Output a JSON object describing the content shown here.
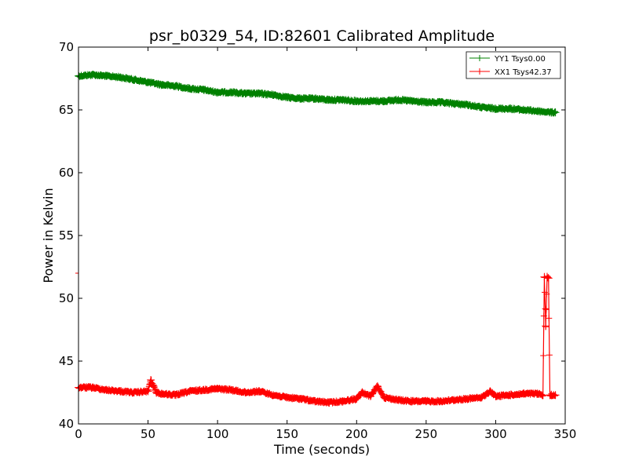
{
  "chart_data": {
    "type": "line",
    "title": "psr_b0329_54, ID:82601 Calibrated Amplitude",
    "xlabel": "Time (seconds)",
    "ylabel": "Power in Kelvin",
    "xlim": [
      0,
      350
    ],
    "ylim": [
      40,
      70
    ],
    "xticks": [
      0,
      50,
      100,
      150,
      200,
      250,
      300,
      350
    ],
    "yticks": [
      40,
      45,
      50,
      55,
      60,
      65,
      70
    ],
    "grid": false,
    "legend_position": "top-right",
    "marker": "+",
    "series": [
      {
        "name": "YY1 Tsys0.00",
        "color": "#008000",
        "x": [
          0,
          10,
          20,
          30,
          40,
          50,
          60,
          70,
          80,
          90,
          100,
          110,
          120,
          130,
          140,
          150,
          160,
          170,
          180,
          190,
          200,
          210,
          220,
          230,
          240,
          250,
          260,
          270,
          280,
          290,
          300,
          310,
          320,
          330,
          340,
          343
        ],
        "y": [
          67.7,
          67.8,
          67.7,
          67.6,
          67.4,
          67.2,
          67.0,
          66.9,
          66.7,
          66.6,
          66.4,
          66.4,
          66.3,
          66.3,
          66.2,
          66.0,
          65.9,
          65.9,
          65.8,
          65.8,
          65.7,
          65.7,
          65.7,
          65.8,
          65.7,
          65.6,
          65.6,
          65.5,
          65.4,
          65.2,
          65.1,
          65.1,
          65.0,
          64.9,
          64.8,
          64.8
        ]
      },
      {
        "name": "XX1 Tsys42.37",
        "color": "#ff0000",
        "x": [
          0,
          10,
          20,
          30,
          40,
          50,
          52,
          54,
          56,
          60,
          70,
          80,
          90,
          100,
          110,
          120,
          130,
          140,
          150,
          160,
          170,
          180,
          190,
          200,
          204,
          210,
          215,
          220,
          230,
          240,
          250,
          260,
          270,
          280,
          290,
          296,
          300,
          310,
          320,
          330,
          334,
          335,
          336,
          337,
          338,
          339,
          340,
          343
        ],
        "y": [
          42.9,
          42.9,
          42.7,
          42.6,
          42.5,
          42.6,
          43.5,
          43.0,
          42.5,
          42.4,
          42.3,
          42.6,
          42.7,
          42.8,
          42.7,
          42.5,
          42.6,
          42.3,
          42.1,
          42.0,
          41.8,
          41.7,
          41.8,
          42.0,
          42.5,
          42.2,
          43.0,
          42.1,
          41.9,
          41.8,
          41.8,
          41.8,
          41.9,
          42.0,
          42.1,
          42.6,
          42.2,
          42.3,
          42.4,
          42.4,
          42.3,
          51.7,
          47.8,
          51.7,
          51.6,
          42.3,
          42.3,
          42.3
        ]
      }
    ]
  }
}
